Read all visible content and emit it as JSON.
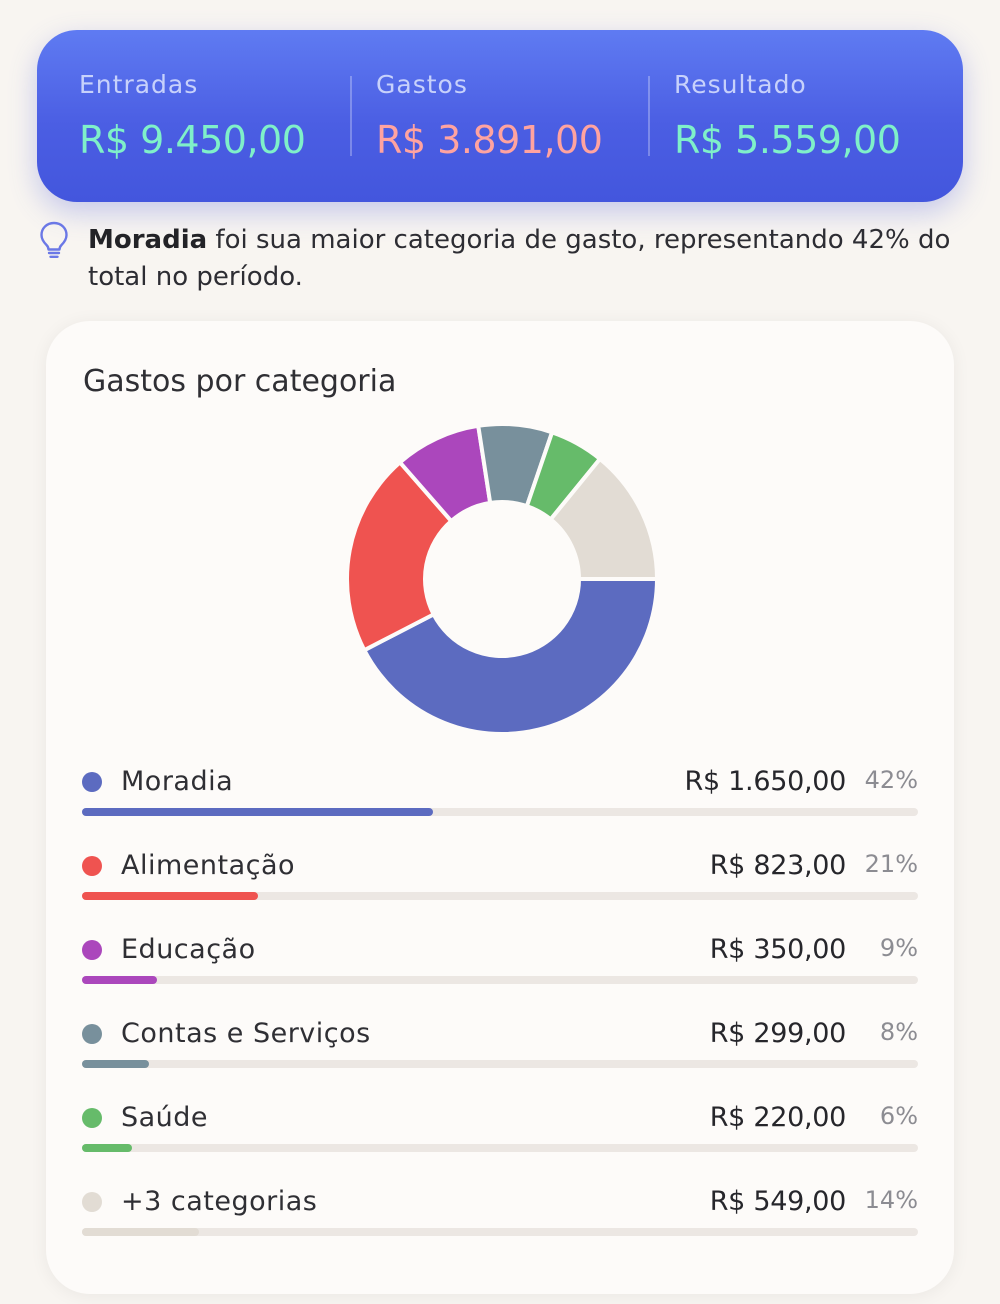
{
  "summary": {
    "income": {
      "label": "Entradas",
      "value": "R$ 9.450,00",
      "color": "#7ff0c9"
    },
    "expenses": {
      "label": "Gastos",
      "value": "R$ 3.891,00",
      "color": "#ffa3a0"
    },
    "result": {
      "label": "Resultado",
      "value": "R$ 5.559,00",
      "color": "#7ff0c9"
    }
  },
  "insight": {
    "icon": "lightbulb-icon",
    "highlight": "Moradia",
    "text": " foi sua maior categoria de gasto, representando 42% do total no período."
  },
  "card": {
    "title": "Gastos por categoria"
  },
  "chart_data": {
    "type": "pie",
    "title": "Gastos por categoria",
    "categories": [
      "Moradia",
      "Alimentação",
      "Educação",
      "Contas e Serviços",
      "Saúde",
      "+3 categorias"
    ],
    "values": [
      1650,
      823,
      350,
      299,
      220,
      549
    ],
    "percentages": [
      42,
      21,
      9,
      8,
      6,
      14
    ],
    "colors": [
      "#5c6bc0",
      "#ef5350",
      "#ab47bc",
      "#78909c",
      "#66bb6a",
      "#e2dcd4"
    ]
  },
  "categories": [
    {
      "name": "Moradia",
      "amount": "R$ 1.650,00",
      "pct": "42%",
      "share": 0.42,
      "color": "#5c6bc0"
    },
    {
      "name": "Alimentação",
      "amount": "R$ 823,00",
      "pct": "21%",
      "share": 0.21,
      "color": "#ef5350"
    },
    {
      "name": "Educação",
      "amount": "R$ 350,00",
      "pct": "9%",
      "share": 0.09,
      "color": "#ab47bc"
    },
    {
      "name": "Contas e Serviços",
      "amount": "R$ 299,00",
      "pct": "8%",
      "share": 0.08,
      "color": "#78909c"
    },
    {
      "name": "Saúde",
      "amount": "R$ 220,00",
      "pct": "6%",
      "share": 0.06,
      "color": "#66bb6a"
    },
    {
      "name": "+3 categorias",
      "amount": "R$ 549,00",
      "pct": "14%",
      "share": 0.14,
      "color": "#e2dcd4"
    }
  ]
}
